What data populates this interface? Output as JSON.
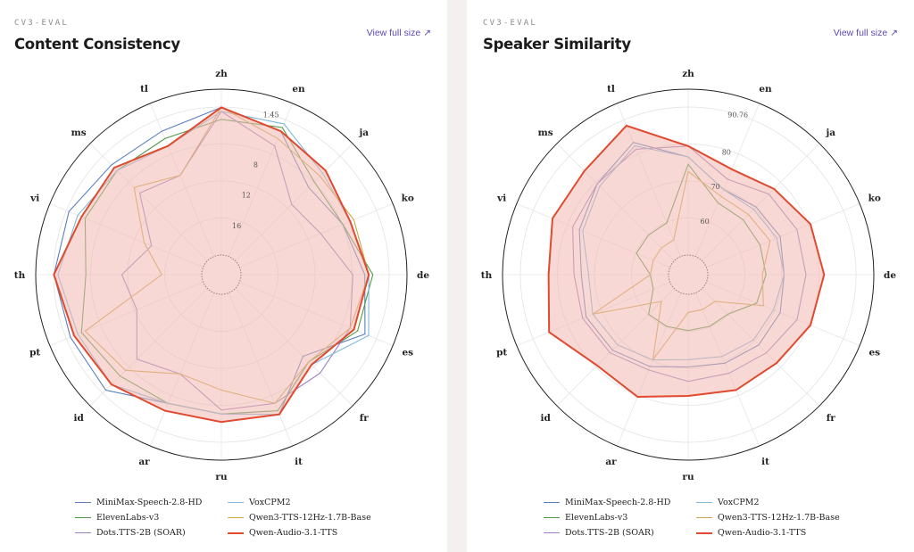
{
  "panels": [
    {
      "eyebrow": "CV3-EVAL",
      "title": "Content Consistency",
      "link_label": "View full size",
      "link_icon": "arrow-up-right-icon"
    },
    {
      "eyebrow": "CV3-EVAL",
      "title": "Speaker Similarity",
      "link_label": "View full size",
      "link_icon": "arrow-up-right-icon"
    }
  ],
  "colors": {
    "MiniMax-Speech-2.8-HD": "#5b7fbf",
    "ElevenLabs-v3": "#4e9a46",
    "Dots.TTS-2B (SOAR)": "#9b7fbf",
    "VoxCPM2": "#7fb8d9",
    "Qwen3-TTS-12Hz-1.7B-Base": "#c9a84a",
    "Qwen-Audio-3.1-TTS": "#e04a2e",
    "highlight_fill": "#f2b8b0"
  },
  "chart_data": [
    {
      "type": "radar",
      "title": "Content Consistency",
      "categories": [
        "zh",
        "en",
        "ja",
        "ko",
        "de",
        "es",
        "fr",
        "it",
        "ru",
        "ar",
        "id",
        "pt",
        "th",
        "vi",
        "ms",
        "tl"
      ],
      "radial_axis": {
        "reversed": true,
        "range": [
          20,
          1.45
        ],
        "ticks": [
          1.45,
          8,
          12,
          16
        ]
      },
      "legend_position": "bottom",
      "series": [
        {
          "name": "MiniMax-Speech-2.8-HD",
          "values": [
            1.5,
            3.0,
            7.0,
            6.0,
            4.5,
            3.0,
            8.0,
            3.5,
            5.0,
            5.0,
            2.0,
            2.0,
            1.5,
            1.8,
            3.0,
            3.0
          ]
        },
        {
          "name": "ElevenLabs-v3",
          "values": [
            3.0,
            2.5,
            6.0,
            6.0,
            3.5,
            4.0,
            7.0,
            4.0,
            5.0,
            5.0,
            4.5,
            3.5,
            5.5,
            4.0,
            4.0,
            4.0
          ]
        },
        {
          "name": "Dots.TTS-2B (SOAR)",
          "values": [
            2.0,
            5.0,
            10.0,
            9.0,
            6.0,
            5.0,
            5.0,
            5.0,
            5.5,
            9.0,
            7.5,
            11.0,
            10.0,
            13.0,
            8.0,
            9.0
          ]
        },
        {
          "name": "VoxCPM2",
          "values": [
            2.0,
            2.0,
            4.5,
            5.0,
            4.0,
            2.5,
            6.5,
            3.5,
            5.0,
            5.0,
            3.0,
            3.0,
            2.0,
            3.0,
            4.0,
            5.0
          ]
        },
        {
          "name": "Qwen3-TTS-12Hz-1.7B-Base",
          "values": [
            1.5,
            4.0,
            5.0,
            4.5,
            4.0,
            5.0,
            7.0,
            5.0,
            8.0,
            9.0,
            5.5,
            4.0,
            15.0,
            12.0,
            7.0,
            9.0
          ]
        },
        {
          "name": "Qwen-Audio-3.1-TTS",
          "values": [
            1.5,
            3.0,
            4.0,
            5.0,
            4.0,
            4.5,
            6.5,
            3.5,
            4.0,
            4.0,
            3.0,
            2.5,
            1.5,
            3.5,
            3.5,
            5.0
          ]
        }
      ]
    },
    {
      "type": "radar",
      "title": "Speaker Similarity",
      "categories": [
        "zh",
        "en",
        "ja",
        "ko",
        "de",
        "es",
        "fr",
        "it",
        "ru",
        "ar",
        "id",
        "pt",
        "th",
        "vi",
        "ms",
        "tl"
      ],
      "radial_axis": {
        "range": [
          50,
          90.76
        ],
        "ticks": [
          60,
          70,
          80,
          90.76
        ]
      },
      "legend_position": "bottom",
      "series": [
        {
          "name": "MiniMax-Speech-2.8-HD",
          "values": [
            77,
            70,
            71,
            72,
            71,
            72,
            72,
            71,
            70,
            72,
            74,
            75,
            74,
            77,
            80,
            84
          ]
        },
        {
          "name": "ElevenLabs-v3",
          "values": [
            75,
            66,
            66,
            66,
            66,
            65,
            60,
            60,
            60,
            60,
            60,
            55,
            55,
            60,
            60,
            60
          ]
        },
        {
          "name": "Dots.TTS-2B (SOAR)",
          "values": [
            80,
            73,
            76,
            77,
            77,
            77,
            75,
            74,
            74,
            73,
            75,
            76,
            76,
            79,
            80,
            82
          ]
        },
        {
          "name": "VoxCPM2",
          "values": [
            77,
            70,
            70,
            71,
            71,
            70,
            70,
            69,
            68,
            70,
            72,
            73,
            72,
            76,
            79,
            83
          ]
        },
        {
          "name": "Qwen3-TTS-12Hz-1.7B-Base",
          "values": [
            73,
            68,
            68,
            69,
            65,
            67,
            55,
            55,
            55,
            70,
            55,
            73,
            55,
            55,
            55,
            55
          ]
        },
        {
          "name": "Qwen-Audio-3.1-TTS",
          "values": [
            80,
            76,
            78,
            81,
            82,
            81,
            79,
            79,
            78,
            81,
            80,
            86,
            83,
            85,
            85,
            89
          ]
        }
      ]
    }
  ]
}
